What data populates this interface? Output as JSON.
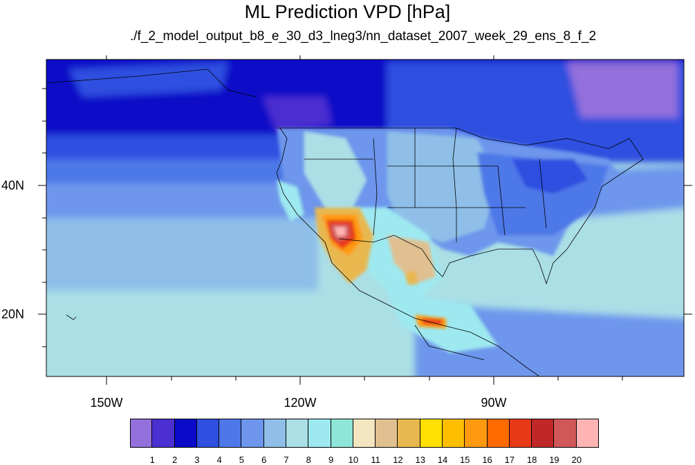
{
  "title": "ML Prediction VPD [hPa]",
  "subtitle": "./f_2_model_output_b8_e_30_d3_lneg3/nn_dataset_2007_week_29_ens_8_f_2",
  "lat_labels": [
    "40N",
    "20N"
  ],
  "lon_labels": [
    "150W",
    "120W",
    "90W"
  ],
  "colorbar": {
    "labels": [
      "1",
      "2",
      "3",
      "4",
      "5",
      "6",
      "7",
      "8",
      "9",
      "10",
      "11",
      "12",
      "13",
      "14",
      "15",
      "16",
      "17",
      "18",
      "19",
      "20"
    ],
    "colors": [
      "#9370db",
      "#4b2fd0",
      "#0a0ac8",
      "#2f4fe0",
      "#4e78e8",
      "#6d96ec",
      "#8fbfe8",
      "#aadfe6",
      "#9ee9f0",
      "#8ee6d8",
      "#f3e5c0",
      "#e0c090",
      "#e8b850",
      "#ffe000",
      "#ffbe00",
      "#ff9a10",
      "#ff6a00",
      "#e83a18",
      "#c02828",
      "#d05858",
      "#ffb4b4"
    ]
  }
}
